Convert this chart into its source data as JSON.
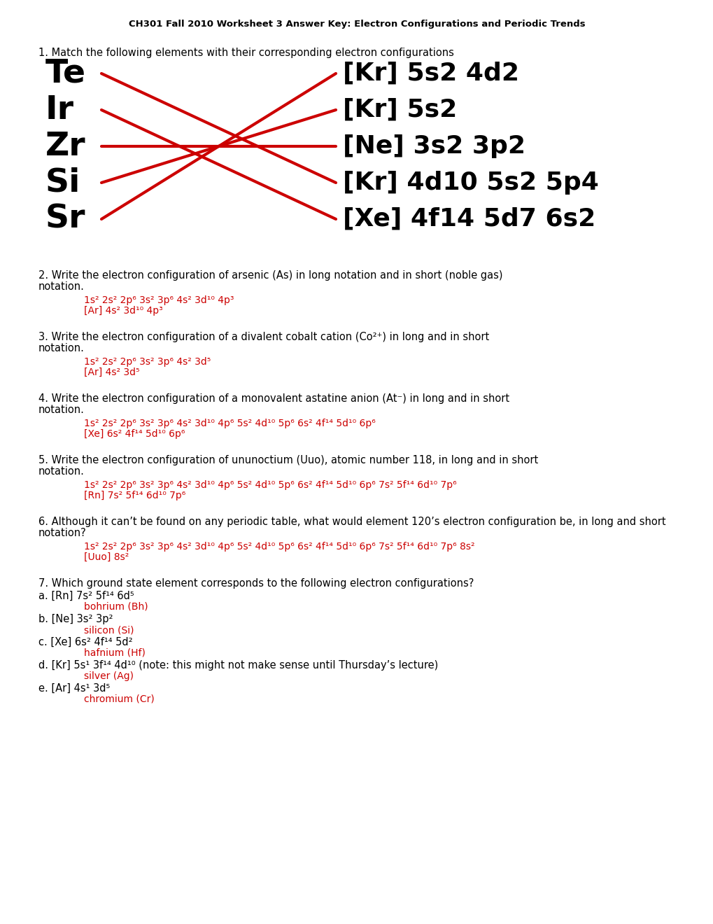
{
  "title": "CH301 Fall 2010 Worksheet 3 Answer Key: Electron Configurations and Periodic Trends",
  "bg_color": "#ffffff",
  "text_color": "#000000",
  "red_color": "#cc0000",
  "elements": [
    "Te",
    "Ir",
    "Zr",
    "Si",
    "Sr"
  ],
  "configs": [
    "[Kr] 5s2 4d2",
    "[Kr] 5s2",
    "[Ne] 3s2 3p2",
    "[Kr] 4d10 5s2 5p4",
    "[Xe] 4f14 5d7 6s2"
  ],
  "match_lines": [
    [
      0,
      3
    ],
    [
      1,
      4
    ],
    [
      2,
      2
    ],
    [
      3,
      1
    ],
    [
      4,
      0
    ]
  ],
  "q1_text": "1. Match the following elements with their corresponding electron configurations",
  "q2_text1": "2. Write the electron configuration of arsenic (As) in long notation and in short (noble gas)",
  "q2_text2": "notation.",
  "q2_ans1": "1s² 2s² 2p⁶ 3s² 3p⁶ 4s² 3d¹⁰ 4p³",
  "q2_ans2": "[Ar] 4s² 3d¹⁰ 4p³",
  "q3_text1": "3. Write the electron configuration of a divalent cobalt cation (Co²⁺) in long and in short",
  "q3_text2": "notation.",
  "q3_ans1": "1s² 2s² 2p⁶ 3s² 3p⁶ 4s² 3d⁵",
  "q3_ans2": "[Ar] 4s² 3d⁵",
  "q4_text1": "4. Write the electron configuration of a monovalent astatine anion (At⁻) in long and in short",
  "q4_text2": "notation.",
  "q4_ans1": "1s² 2s² 2p⁶ 3s² 3p⁶ 4s² 3d¹⁰ 4p⁶ 5s² 4d¹⁰ 5p⁶ 6s² 4f¹⁴ 5d¹⁰ 6p⁶",
  "q4_ans2": "[Xe] 6s² 4f¹⁴ 5d¹⁰ 6p⁶",
  "q5_text1": "5. Write the electron configuration of ununoctium (Uuo), atomic number 118, in long and in short",
  "q5_text2": "notation.",
  "q5_ans1": "1s² 2s² 2p⁶ 3s² 3p⁶ 4s² 3d¹⁰ 4p⁶ 5s² 4d¹⁰ 5p⁶ 6s² 4f¹⁴ 5d¹⁰ 6p⁶ 7s² 5f¹⁴ 6d¹⁰ 7p⁶",
  "q5_ans2": "[Rn] 7s² 5f¹⁴ 6d¹⁰ 7p⁶",
  "q6_text1": "6. Although it can’t be found on any periodic table, what would element 120’s electron configuration be, in long and short",
  "q6_text2": "notation?",
  "q6_ans1": "1s² 2s² 2p⁶ 3s² 3p⁶ 4s² 3d¹⁰ 4p⁶ 5s² 4d¹⁰ 5p⁶ 6s² 4f¹⁴ 5d¹⁰ 6p⁶ 7s² 5f¹⁴ 6d¹⁰ 7p⁶ 8s²",
  "q6_ans2": "[Uuo] 8s²",
  "q7_text": "7. Which ground state element corresponds to the following electron configurations?",
  "q7a_config": "a. [Rn] 7s² 5f¹⁴ 6d⁵",
  "q7a_ans": "bohrium (Bh)",
  "q7b_config": "b. [Ne] 3s² 3p²",
  "q7b_ans": "silicon (Si)",
  "q7c_config": "c. [Xe] 6s² 4f¹⁴ 5d²",
  "q7c_ans": "hafnium (Hf)",
  "q7d_config": "d. [Kr] 5s¹ 3f¹⁴ 4d¹⁰",
  "q7d_note": " (note: this might not make sense until Thursday’s lecture)",
  "q7d_ans": "silver (Ag)",
  "q7e_config": "e. [Ar] 4s¹ 3d⁵",
  "q7e_ans": "chromium (Cr)"
}
